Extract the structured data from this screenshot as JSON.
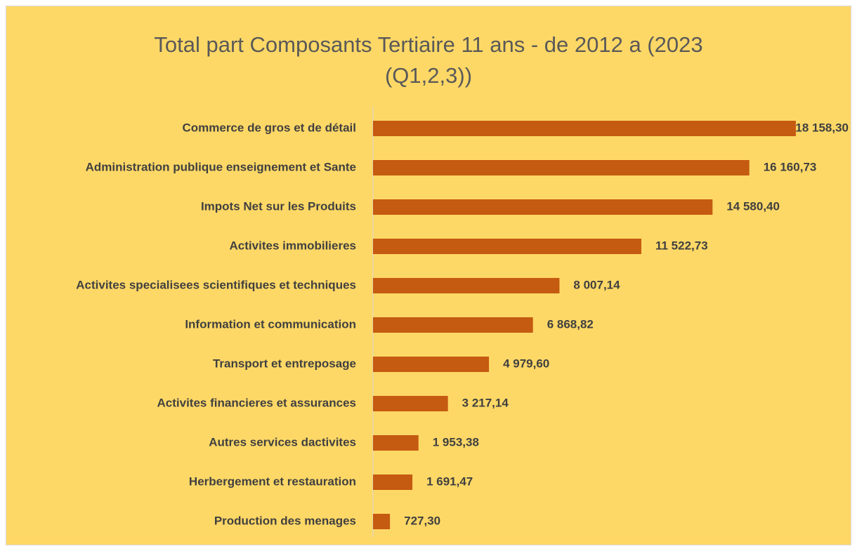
{
  "chart_data": {
    "type": "bar",
    "orientation": "horizontal",
    "title": "Total part Composants Tertiaire 11 ans - de 2012 a (2023 (Q1,2,3))",
    "categories": [
      "Commerce de gros et de détail",
      "Administration publique enseignement et Sante",
      "Impots Net sur les Produits",
      "Activites immobilieres",
      "Activites specialisees scientifiques et techniques",
      "Information et communication",
      "Transport et entreposage",
      "Activites financieres et assurances",
      "Autres services dactivites",
      "Herbergement et restauration",
      "Production des menages"
    ],
    "values": [
      18158.3,
      16160.73,
      14580.4,
      11522.73,
      8007.14,
      6868.82,
      4979.6,
      3217.14,
      1953.38,
      1691.47,
      727.3
    ],
    "value_labels": [
      "18 158,30",
      "16 160,73",
      "14 580,40",
      "11 522,73",
      "8 007,14",
      "6 868,82",
      "4 979,60",
      "3 217,14",
      "1 953,38",
      "1 691,47",
      "727,30"
    ],
    "color": "#c55a11",
    "xlim": [
      0,
      20000
    ]
  }
}
